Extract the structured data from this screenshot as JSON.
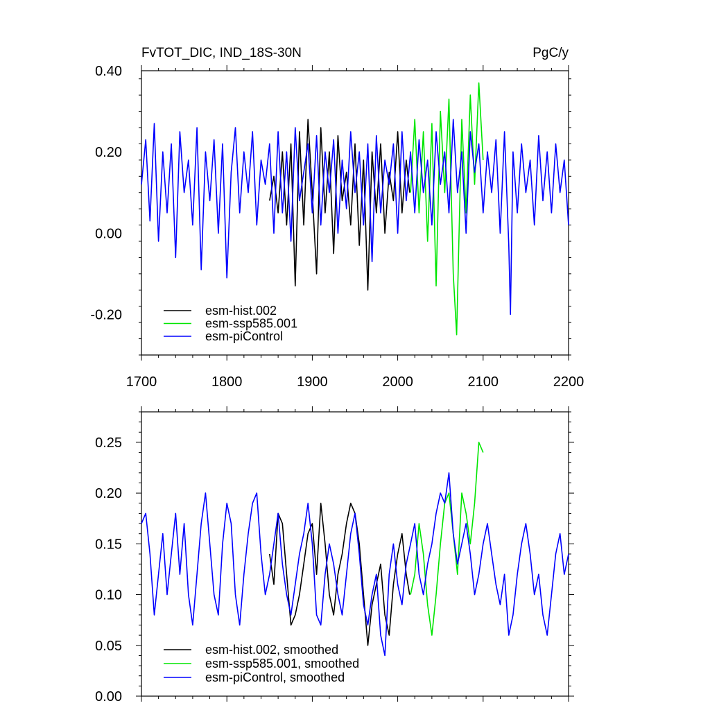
{
  "chart_data": [
    {
      "type": "line",
      "title_left": "FvTOT_DIC, IND_18S-30N",
      "title_right": "PgC/y",
      "xlim": [
        1700,
        2200
      ],
      "ylim": [
        -0.3,
        0.4
      ],
      "x_ticks": [
        1700,
        1800,
        1900,
        2000,
        2100,
        2200
      ],
      "x_tick_labels": [
        "1700",
        "1800",
        "1900",
        "2000",
        "2100",
        "2200"
      ],
      "y_ticks": [
        -0.2,
        0.0,
        0.2,
        0.4
      ],
      "y_tick_labels": [
        "-0.20",
        "0.00",
        "0.20",
        "0.40"
      ],
      "legend_position": "bottom-left",
      "series": [
        {
          "name": "esm-hist.002",
          "color": "#000000",
          "x": [
            1850,
            1855,
            1860,
            1865,
            1870,
            1875,
            1880,
            1885,
            1890,
            1895,
            1900,
            1905,
            1910,
            1915,
            1920,
            1925,
            1930,
            1935,
            1940,
            1945,
            1950,
            1955,
            1960,
            1965,
            1970,
            1975,
            1980,
            1985,
            1990,
            1995,
            2000,
            2005,
            2010,
            2014
          ],
          "values": [
            0.08,
            0.14,
            0.05,
            0.2,
            0.02,
            0.22,
            -0.13,
            0.25,
            0.02,
            0.28,
            0.1,
            -0.1,
            0.26,
            0.05,
            0.2,
            -0.05,
            0.24,
            0.08,
            0.15,
            0.02,
            0.22,
            -0.03,
            0.18,
            -0.14,
            0.2,
            0.05,
            0.22,
            0.0,
            0.15,
            0.08,
            0.25,
            0.05,
            0.18,
            0.1
          ]
        },
        {
          "name": "esm-ssp585.001",
          "color": "#00e600",
          "x": [
            2015,
            2020,
            2025,
            2030,
            2035,
            2040,
            2045,
            2050,
            2055,
            2060,
            2065,
            2069,
            2075,
            2080,
            2085,
            2090,
            2095,
            2100
          ],
          "values": [
            0.1,
            0.28,
            0.05,
            0.25,
            -0.02,
            0.27,
            -0.13,
            0.3,
            0.1,
            0.33,
            -0.1,
            -0.25,
            0.28,
            0.05,
            0.34,
            0.12,
            0.37,
            0.18
          ]
        },
        {
          "name": "esm-piControl",
          "color": "#0000ff",
          "x": [
            1700,
            1705,
            1710,
            1715,
            1720,
            1725,
            1730,
            1735,
            1740,
            1745,
            1750,
            1755,
            1760,
            1765,
            1770,
            1775,
            1780,
            1785,
            1790,
            1795,
            1800,
            1805,
            1810,
            1815,
            1820,
            1825,
            1830,
            1835,
            1840,
            1845,
            1850,
            1855,
            1860,
            1865,
            1870,
            1875,
            1880,
            1885,
            1890,
            1895,
            1900,
            1905,
            1910,
            1915,
            1920,
            1925,
            1930,
            1935,
            1940,
            1945,
            1950,
            1955,
            1960,
            1965,
            1970,
            1975,
            1980,
            1985,
            1990,
            1995,
            2000,
            2005,
            2010,
            2015,
            2020,
            2025,
            2030,
            2035,
            2040,
            2045,
            2050,
            2055,
            2060,
            2065,
            2070,
            2075,
            2080,
            2085,
            2090,
            2095,
            2100,
            2105,
            2110,
            2115,
            2120,
            2125,
            2130,
            2132,
            2135,
            2140,
            2145,
            2150,
            2155,
            2160,
            2165,
            2170,
            2175,
            2180,
            2185,
            2190,
            2195,
            2200
          ],
          "values": [
            0.12,
            0.23,
            0.03,
            0.27,
            -0.02,
            0.2,
            0.05,
            0.22,
            -0.06,
            0.25,
            0.1,
            0.18,
            0.02,
            0.26,
            -0.09,
            0.2,
            0.08,
            0.23,
            0.0,
            0.22,
            -0.11,
            0.15,
            0.26,
            0.05,
            0.2,
            0.1,
            0.25,
            0.02,
            0.18,
            0.12,
            0.22,
            0.0,
            0.25,
            0.05,
            0.2,
            -0.02,
            0.26,
            0.08,
            0.15,
            0.22,
            0.05,
            0.24,
            0.02,
            0.2,
            0.1,
            0.23,
            0.0,
            0.18,
            0.06,
            0.25,
            0.1,
            0.2,
            0.02,
            0.22,
            -0.07,
            0.24,
            0.05,
            0.18,
            0.12,
            0.22,
            0.0,
            0.25,
            0.08,
            0.2,
            0.05,
            0.23,
            0.1,
            0.18,
            0.02,
            0.25,
            0.12,
            0.2,
            0.05,
            0.28,
            0.1,
            0.2,
            0.0,
            0.25,
            0.15,
            0.22,
            0.05,
            0.2,
            0.1,
            0.23,
            0.0,
            0.25,
            -0.03,
            -0.2,
            0.2,
            0.05,
            0.22,
            0.1,
            0.18,
            0.02,
            0.24,
            0.08,
            0.2,
            0.05,
            0.22,
            0.1,
            0.18,
            0.02
          ]
        }
      ]
    },
    {
      "type": "line",
      "xlim": [
        1700,
        2200
      ],
      "ylim": [
        0.0,
        0.28
      ],
      "x_ticks": [
        1700,
        1800,
        1900,
        2000,
        2100,
        2200
      ],
      "y_ticks": [
        0.0,
        0.05,
        0.1,
        0.15,
        0.2,
        0.25
      ],
      "y_tick_labels": [
        "0.00",
        "0.05",
        "0.10",
        "0.15",
        "0.20",
        "0.25"
      ],
      "legend_position": "bottom-left",
      "series": [
        {
          "name": "esm-hist.002, smoothed",
          "color": "#000000",
          "x": [
            1850,
            1855,
            1860,
            1865,
            1870,
            1875,
            1880,
            1885,
            1890,
            1895,
            1900,
            1905,
            1910,
            1915,
            1920,
            1925,
            1930,
            1935,
            1940,
            1945,
            1950,
            1955,
            1960,
            1965,
            1970,
            1975,
            1980,
            1985,
            1990,
            1995,
            2000,
            2005,
            2010,
            2014
          ],
          "values": [
            0.14,
            0.11,
            0.18,
            0.17,
            0.12,
            0.07,
            0.08,
            0.1,
            0.13,
            0.16,
            0.17,
            0.12,
            0.19,
            0.15,
            0.1,
            0.08,
            0.12,
            0.14,
            0.17,
            0.19,
            0.18,
            0.15,
            0.1,
            0.05,
            0.09,
            0.11,
            0.13,
            0.08,
            0.06,
            0.11,
            0.14,
            0.16,
            0.12,
            0.1
          ]
        },
        {
          "name": "esm-ssp585.001, smoothed",
          "color": "#00e600",
          "x": [
            2015,
            2020,
            2025,
            2030,
            2035,
            2040,
            2045,
            2050,
            2055,
            2060,
            2065,
            2070,
            2075,
            2080,
            2085,
            2090,
            2095,
            2100
          ],
          "values": [
            0.1,
            0.12,
            0.17,
            0.14,
            0.09,
            0.06,
            0.1,
            0.15,
            0.19,
            0.2,
            0.16,
            0.12,
            0.2,
            0.18,
            0.15,
            0.19,
            0.25,
            0.24
          ]
        },
        {
          "name": "esm-piControl, smoothed",
          "color": "#0000ff",
          "x": [
            1700,
            1705,
            1710,
            1715,
            1720,
            1725,
            1730,
            1735,
            1740,
            1745,
            1750,
            1755,
            1760,
            1765,
            1770,
            1775,
            1780,
            1785,
            1790,
            1795,
            1800,
            1805,
            1810,
            1815,
            1820,
            1825,
            1830,
            1835,
            1840,
            1845,
            1850,
            1855,
            1860,
            1865,
            1870,
            1875,
            1880,
            1885,
            1890,
            1895,
            1900,
            1905,
            1910,
            1915,
            1920,
            1925,
            1930,
            1935,
            1940,
            1945,
            1950,
            1955,
            1960,
            1965,
            1970,
            1975,
            1980,
            1985,
            1990,
            1995,
            2000,
            2005,
            2010,
            2015,
            2020,
            2025,
            2030,
            2035,
            2040,
            2045,
            2050,
            2055,
            2060,
            2065,
            2070,
            2075,
            2080,
            2085,
            2090,
            2095,
            2100,
            2105,
            2110,
            2115,
            2120,
            2125,
            2130,
            2135,
            2140,
            2145,
            2150,
            2155,
            2160,
            2165,
            2170,
            2175,
            2180,
            2185,
            2190,
            2195,
            2200
          ],
          "values": [
            0.17,
            0.18,
            0.14,
            0.08,
            0.12,
            0.16,
            0.1,
            0.14,
            0.18,
            0.12,
            0.17,
            0.1,
            0.07,
            0.12,
            0.17,
            0.2,
            0.15,
            0.1,
            0.08,
            0.15,
            0.19,
            0.17,
            0.1,
            0.07,
            0.12,
            0.16,
            0.19,
            0.2,
            0.14,
            0.1,
            0.12,
            0.15,
            0.18,
            0.13,
            0.1,
            0.08,
            0.11,
            0.14,
            0.16,
            0.19,
            0.15,
            0.08,
            0.07,
            0.12,
            0.15,
            0.13,
            0.1,
            0.08,
            0.12,
            0.16,
            0.18,
            0.14,
            0.09,
            0.07,
            0.1,
            0.12,
            0.06,
            0.04,
            0.12,
            0.15,
            0.11,
            0.09,
            0.13,
            0.15,
            0.17,
            0.12,
            0.1,
            0.13,
            0.15,
            0.18,
            0.2,
            0.19,
            0.22,
            0.16,
            0.13,
            0.15,
            0.17,
            0.14,
            0.1,
            0.12,
            0.15,
            0.17,
            0.14,
            0.11,
            0.09,
            0.12,
            0.06,
            0.08,
            0.12,
            0.15,
            0.17,
            0.14,
            0.1,
            0.12,
            0.08,
            0.06,
            0.1,
            0.14,
            0.16,
            0.12,
            0.14
          ]
        }
      ]
    }
  ]
}
